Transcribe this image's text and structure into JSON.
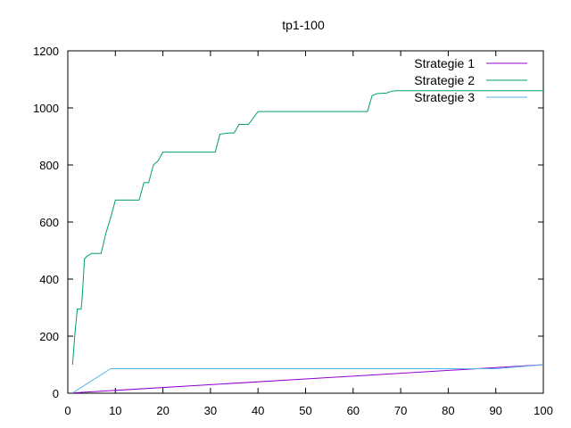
{
  "chart_data": {
    "type": "line",
    "title": "tp1-100",
    "xlabel": "",
    "ylabel": "",
    "xlim": [
      0,
      100
    ],
    "ylim": [
      0,
      1200
    ],
    "xticks": [
      0,
      10,
      20,
      30,
      40,
      50,
      60,
      70,
      80,
      90,
      100
    ],
    "yticks": [
      0,
      200,
      400,
      600,
      800,
      1000,
      1200
    ],
    "grid": false,
    "legend_position": "top-right",
    "series": [
      {
        "name": "Strategie 1",
        "color": "#9400d3",
        "x": [
          1,
          100
        ],
        "y": [
          1,
          100
        ]
      },
      {
        "name": "Strategie 2",
        "color": "#009e73",
        "x": [
          1,
          1.5,
          2,
          2.8,
          3,
          3.5,
          4,
          5,
          6,
          7,
          8,
          9,
          9.5,
          10,
          15,
          16,
          17,
          18,
          19,
          20,
          31,
          32,
          34,
          35,
          36,
          38,
          40,
          63,
          64,
          65,
          67,
          68,
          69,
          100
        ],
        "y": [
          100,
          210,
          295,
          295,
          330,
          470,
          480,
          490,
          490,
          490,
          560,
          615,
          645,
          677,
          677,
          738,
          738,
          800,
          815,
          845,
          845,
          908,
          912,
          912,
          942,
          942,
          987,
          987,
          1043,
          1050,
          1052,
          1058,
          1060,
          1060
        ]
      },
      {
        "name": "Strategie 3",
        "color": "#56b4e9",
        "x": [
          1,
          9,
          10,
          90,
          100
        ],
        "y": [
          1,
          86,
          86,
          86,
          100
        ]
      }
    ]
  }
}
